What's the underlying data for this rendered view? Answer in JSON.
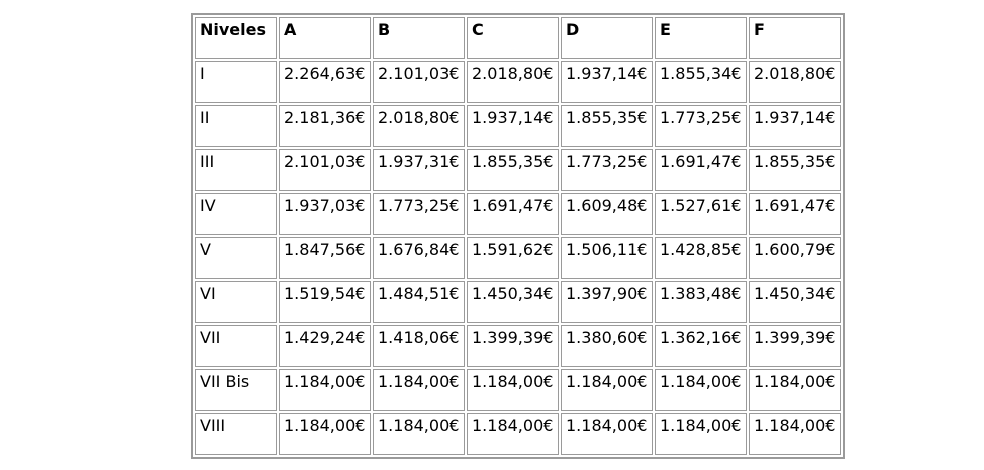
{
  "table": {
    "header": [
      "Niveles",
      "A",
      "B",
      "C",
      "D",
      "E",
      "F"
    ],
    "rows": [
      {
        "level": "I",
        "values": [
          "2.264,63€",
          "2.101,03€",
          "2.018,80€",
          "1.937,14€",
          "1.855,34€",
          "2.018,80€"
        ]
      },
      {
        "level": "II",
        "values": [
          "2.181,36€",
          "2.018,80€",
          "1.937,14€",
          "1.855,35€",
          "1.773,25€",
          "1.937,14€"
        ]
      },
      {
        "level": "III",
        "values": [
          "2.101,03€",
          "1.937,31€",
          "1.855,35€",
          "1.773,25€",
          "1.691,47€",
          "1.855,35€"
        ]
      },
      {
        "level": "IV",
        "values": [
          "1.937,03€",
          "1.773,25€",
          "1.691,47€",
          "1.609,48€",
          "1.527,61€",
          "1.691,47€"
        ]
      },
      {
        "level": "V",
        "values": [
          "1.847,56€",
          "1.676,84€",
          "1.591,62€",
          "1.506,11€",
          "1.428,85€",
          "1.600,79€"
        ]
      },
      {
        "level": "VI",
        "values": [
          "1.519,54€",
          "1.484,51€",
          "1.450,34€",
          "1.397,90€",
          "1.383,48€",
          "1.450,34€"
        ]
      },
      {
        "level": "VII",
        "values": [
          "1.429,24€",
          "1.418,06€",
          "1.399,39€",
          "1.380,60€",
          "1.362,16€",
          "1.399,39€"
        ]
      },
      {
        "level": "VII Bis",
        "values": [
          "1.184,00€",
          "1.184,00€",
          "1.184,00€",
          "1.184,00€",
          "1.184,00€",
          "1.184,00€"
        ]
      },
      {
        "level": "VIII",
        "values": [
          "1.184,00€",
          "1.184,00€",
          "1.184,00€",
          "1.184,00€",
          "1.184,00€",
          "1.184,00€"
        ]
      }
    ],
    "colors": {
      "border": "#9a9a9a",
      "text": "#000000",
      "background": "#ffffff"
    }
  }
}
